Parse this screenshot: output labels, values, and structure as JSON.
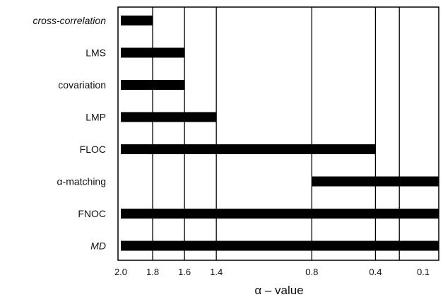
{
  "chart_data": {
    "type": "bar",
    "orientation": "horizontal",
    "xlabel": "α – value",
    "x_axis_reversed": true,
    "x_range": [
      2.0,
      0.0
    ],
    "x_ticks": [
      2.0,
      1.8,
      1.6,
      1.4,
      0.8,
      0.4,
      0.1
    ],
    "x_tick_labels": [
      "2.0",
      "1.8",
      "1.6",
      "1.4",
      "0.8",
      "0.4",
      "0.1"
    ],
    "extra_vertical_lines": [
      0.25
    ],
    "categories": [
      {
        "label": "cross-correlation",
        "italic": true
      },
      {
        "label": "LMS",
        "italic": false
      },
      {
        "label": "covariation",
        "italic": false
      },
      {
        "label": "LMP",
        "italic": false
      },
      {
        "label": "FLOC",
        "italic": false
      },
      {
        "label": "α-matching",
        "italic": false
      },
      {
        "label": "FNOC",
        "italic": false
      },
      {
        "label": "MD",
        "italic": true
      }
    ],
    "ranges": [
      {
        "from": 2.0,
        "to": 1.8
      },
      {
        "from": 2.0,
        "to": 1.6
      },
      {
        "from": 2.0,
        "to": 1.6
      },
      {
        "from": 2.0,
        "to": 1.4
      },
      {
        "from": 2.0,
        "to": 0.4
      },
      {
        "from": 0.8,
        "to": 0.0
      },
      {
        "from": 2.0,
        "to": 0.0
      },
      {
        "from": 2.0,
        "to": 0.0
      }
    ],
    "grid": "vertical lines at ticks",
    "bar_color": "#000000"
  }
}
